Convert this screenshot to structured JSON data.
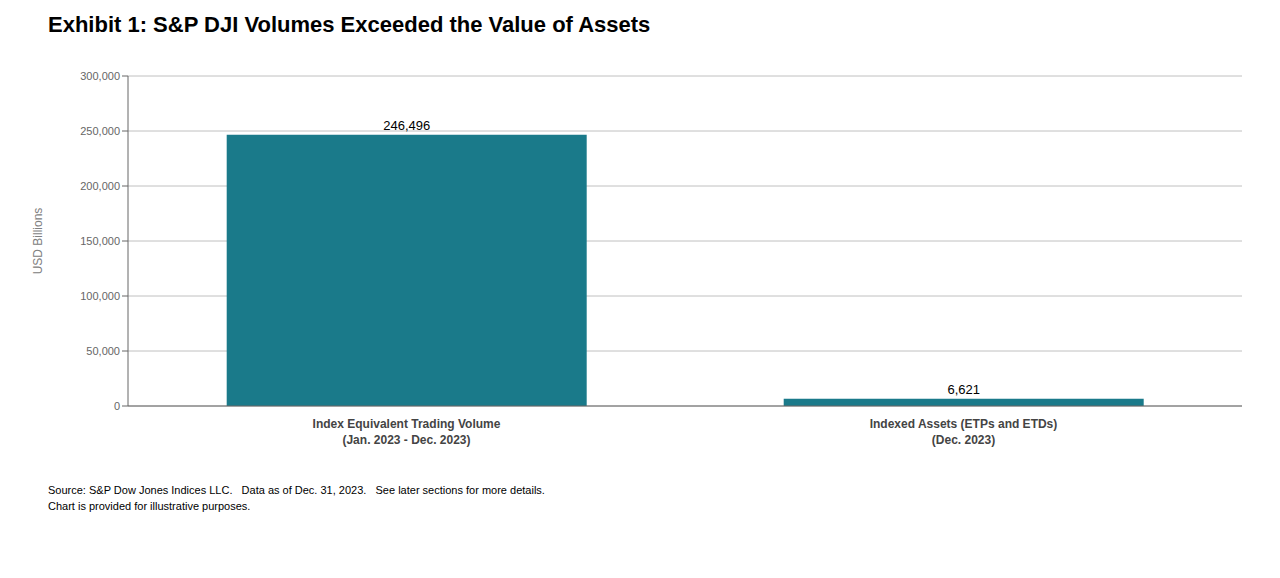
{
  "chart_data": {
    "type": "bar",
    "title": "Exhibit 1: S&P DJI Volumes Exceeded the Value of Assets",
    "categories": [
      "Index Equivalent Trading Volume\n(Jan. 2023 - Dec. 2023)",
      "Indexed Assets (ETPs and ETDs)\n(Dec. 2023)"
    ],
    "values": [
      246496,
      6621
    ],
    "value_labels": [
      "246,496",
      "6,621"
    ],
    "data_labels": true,
    "color": "#1a7a8a",
    "ylabel": "USD Billions",
    "ylim": [
      0,
      300000
    ],
    "yticks": [
      0,
      {
        "value": 50000,
        "label": "50,000"
      },
      {
        "value": 100000,
        "label": "100,000"
      },
      {
        "value": 150000,
        "label": "150,000"
      },
      {
        "value": 200000,
        "label": "200,000"
      },
      {
        "value": 250000,
        "label": "250,000"
      },
      {
        "value": 300000,
        "label": "300,000"
      }
    ],
    "grid": true,
    "annotations": [
      "Source: S&P Dow Jones Indices LLC.   Data as of Dec. 31, 2023.   See later sections for more details.",
      "Chart is provided for illustrative purposes."
    ]
  }
}
